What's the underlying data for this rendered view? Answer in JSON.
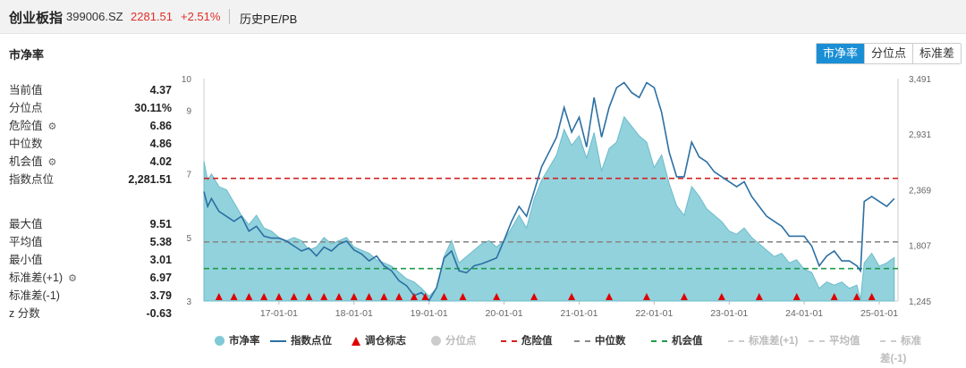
{
  "header": {
    "title": "创业板指",
    "code": "399006.SZ",
    "price": "2281.51",
    "change": "+2.51%",
    "history_link": "历史PE/PB"
  },
  "section_title": "市净率",
  "tabs": [
    {
      "label": "市净率",
      "active": true
    },
    {
      "label": "分位点",
      "active": false
    },
    {
      "label": "标准差",
      "active": false
    }
  ],
  "stats_top": [
    {
      "label": "当前值",
      "value": "4.37",
      "gear": false
    },
    {
      "label": "分位点",
      "value": "30.11%",
      "gear": false
    },
    {
      "label": "危险值",
      "value": "6.86",
      "gear": true
    },
    {
      "label": "中位数",
      "value": "4.86",
      "gear": false
    },
    {
      "label": "机会值",
      "value": "4.02",
      "gear": true
    },
    {
      "label": "指数点位",
      "value": "2,281.51",
      "gear": false
    }
  ],
  "stats_bottom": [
    {
      "label": "最大值",
      "value": "9.51",
      "gear": false
    },
    {
      "label": "平均值",
      "value": "5.38",
      "gear": false
    },
    {
      "label": "最小值",
      "value": "3.01",
      "gear": false
    },
    {
      "label": "标准差(+1)",
      "value": "6.97",
      "gear": true
    },
    {
      "label": "标准差(-1)",
      "value": "3.79",
      "gear": false
    },
    {
      "label": "z 分数",
      "value": "-0.63",
      "gear": false
    }
  ],
  "legend": [
    {
      "label": "市净率",
      "type": "dot",
      "color": "#7fcad6",
      "dim": false
    },
    {
      "label": "指数点位",
      "type": "line",
      "color": "#2b6fa3",
      "dim": false
    },
    {
      "label": "调仓标志",
      "type": "triangle",
      "color": "#e00000",
      "dim": false
    },
    {
      "label": "分位点",
      "type": "dot",
      "color": "#cccccc",
      "dim": true
    },
    {
      "label": "危险值",
      "type": "dash",
      "color": "#d32020",
      "dim": false
    },
    {
      "label": "中位数",
      "type": "dash",
      "color": "#8a8a8a",
      "dim": false
    },
    {
      "label": "机会值",
      "type": "dash",
      "color": "#1f9a4b",
      "dim": false
    },
    {
      "label": "标准差(+1)",
      "type": "dash",
      "color": "#cccccc",
      "dim": true
    },
    {
      "label": "平均值",
      "type": "dash",
      "color": "#cccccc",
      "dim": true
    },
    {
      "label": "标准差(-1)",
      "type": "dash",
      "color": "#cccccc",
      "dim": true
    }
  ],
  "chart_data": {
    "type": "area",
    "x_ticks": [
      "17-01-01",
      "18-01-01",
      "19-01-01",
      "20-01-01",
      "21-01-01",
      "22-01-01",
      "23-01-01",
      "24-01-01",
      "25-01-01"
    ],
    "x_range": [
      2016.0,
      2025.25
    ],
    "y_left_ticks": [
      "3",
      "5",
      "7",
      "9",
      "10"
    ],
    "y_left_range": [
      3,
      10
    ],
    "y_right_ticks": [
      "1,245",
      "1,807",
      "2,369",
      "2,931",
      "3,491"
    ],
    "y_right_range": [
      1245,
      3491
    ],
    "danger": 6.86,
    "median": 4.86,
    "opportunity": 4.02,
    "series": [
      {
        "name": "市净率",
        "axis": "left",
        "color": "#7fcad6",
        "x": [
          2016.0,
          2016.05,
          2016.1,
          2016.2,
          2016.3,
          2016.4,
          2016.5,
          2016.6,
          2016.7,
          2016.8,
          2016.9,
          2017.0,
          2017.1,
          2017.2,
          2017.3,
          2017.4,
          2017.5,
          2017.6,
          2017.7,
          2017.8,
          2017.9,
          2018.0,
          2018.1,
          2018.2,
          2018.3,
          2018.4,
          2018.5,
          2018.6,
          2018.7,
          2018.8,
          2018.9,
          2019.0,
          2019.1,
          2019.2,
          2019.3,
          2019.4,
          2019.5,
          2019.6,
          2019.7,
          2019.8,
          2019.9,
          2020.0,
          2020.1,
          2020.2,
          2020.3,
          2020.4,
          2020.5,
          2020.6,
          2020.7,
          2020.8,
          2020.9,
          2021.0,
          2021.1,
          2021.2,
          2021.3,
          2021.4,
          2021.5,
          2021.6,
          2021.7,
          2021.8,
          2021.9,
          2022.0,
          2022.1,
          2022.2,
          2022.3,
          2022.4,
          2022.5,
          2022.6,
          2022.7,
          2022.8,
          2022.9,
          2023.0,
          2023.1,
          2023.2,
          2023.3,
          2023.4,
          2023.5,
          2023.6,
          2023.7,
          2023.8,
          2023.9,
          2024.0,
          2024.1,
          2024.2,
          2024.3,
          2024.4,
          2024.5,
          2024.6,
          2024.7,
          2024.75,
          2024.8,
          2024.9,
          2025.0,
          2025.1,
          2025.2
        ],
        "values": [
          7.4,
          6.8,
          7.0,
          6.6,
          6.5,
          6.1,
          5.7,
          5.4,
          5.7,
          5.3,
          5.2,
          5.0,
          4.9,
          5.0,
          4.9,
          4.6,
          4.7,
          5.0,
          4.8,
          4.9,
          5.0,
          4.7,
          4.6,
          4.5,
          4.3,
          4.2,
          4.1,
          3.9,
          3.7,
          3.6,
          3.4,
          3.15,
          3.4,
          4.4,
          4.9,
          4.2,
          4.4,
          4.6,
          4.8,
          4.9,
          4.7,
          4.9,
          5.3,
          5.7,
          5.3,
          6.2,
          6.8,
          7.2,
          7.6,
          8.4,
          7.9,
          8.2,
          7.5,
          8.3,
          7.1,
          7.8,
          8.0,
          8.8,
          8.5,
          8.2,
          8.0,
          7.2,
          7.6,
          6.7,
          6.0,
          5.7,
          6.6,
          6.3,
          5.9,
          5.7,
          5.5,
          5.2,
          5.1,
          5.3,
          5.0,
          4.8,
          4.6,
          4.4,
          4.5,
          4.2,
          4.3,
          4.0,
          3.9,
          3.4,
          3.6,
          3.5,
          3.6,
          3.4,
          3.5,
          3.05,
          4.2,
          4.5,
          4.1,
          4.2,
          4.37
        ]
      },
      {
        "name": "指数点位",
        "axis": "right",
        "color": "#2b6fa3",
        "x": [
          2016.0,
          2016.05,
          2016.1,
          2016.2,
          2016.3,
          2016.4,
          2016.5,
          2016.6,
          2016.7,
          2016.8,
          2016.9,
          2017.0,
          2017.1,
          2017.2,
          2017.3,
          2017.4,
          2017.5,
          2017.6,
          2017.7,
          2017.8,
          2017.9,
          2018.0,
          2018.1,
          2018.2,
          2018.3,
          2018.4,
          2018.5,
          2018.6,
          2018.7,
          2018.8,
          2018.9,
          2019.0,
          2019.1,
          2019.2,
          2019.3,
          2019.4,
          2019.5,
          2019.6,
          2019.7,
          2019.8,
          2019.9,
          2020.0,
          2020.1,
          2020.2,
          2020.3,
          2020.4,
          2020.5,
          2020.6,
          2020.7,
          2020.8,
          2020.9,
          2021.0,
          2021.1,
          2021.2,
          2021.3,
          2021.4,
          2021.5,
          2021.6,
          2021.7,
          2021.8,
          2021.9,
          2022.0,
          2022.1,
          2022.2,
          2022.3,
          2022.4,
          2022.5,
          2022.6,
          2022.7,
          2022.8,
          2022.9,
          2023.0,
          2023.1,
          2023.2,
          2023.3,
          2023.4,
          2023.5,
          2023.6,
          2023.7,
          2023.8,
          2023.9,
          2024.0,
          2024.1,
          2024.2,
          2024.3,
          2024.4,
          2024.5,
          2024.6,
          2024.7,
          2024.75,
          2024.8,
          2024.9,
          2025.0,
          2025.1,
          2025.2
        ],
        "values": [
          2350,
          2200,
          2280,
          2150,
          2100,
          2050,
          2100,
          1950,
          2000,
          1900,
          1880,
          1880,
          1850,
          1800,
          1750,
          1780,
          1700,
          1790,
          1750,
          1820,
          1850,
          1760,
          1720,
          1650,
          1700,
          1600,
          1550,
          1450,
          1400,
          1300,
          1330,
          1250,
          1380,
          1680,
          1750,
          1550,
          1530,
          1600,
          1620,
          1650,
          1680,
          1860,
          2050,
          2200,
          2100,
          2350,
          2600,
          2750,
          2900,
          3200,
          2950,
          3100,
          2800,
          3300,
          2900,
          3200,
          3400,
          3450,
          3350,
          3300,
          3450,
          3400,
          3150,
          2750,
          2500,
          2500,
          2850,
          2700,
          2650,
          2550,
          2500,
          2450,
          2400,
          2450,
          2300,
          2200,
          2100,
          2050,
          2000,
          1900,
          1900,
          1900,
          1800,
          1600,
          1700,
          1750,
          1650,
          1650,
          1600,
          1550,
          2250,
          2300,
          2250,
          2200,
          2280
        ]
      }
    ],
    "rebalance_x": [
      2016.2,
      2016.4,
      2016.6,
      2016.8,
      2017.0,
      2017.2,
      2017.4,
      2017.6,
      2017.8,
      2018.0,
      2018.2,
      2018.4,
      2018.6,
      2018.8,
      2018.95,
      2019.2,
      2019.45,
      2019.9,
      2020.4,
      2020.9,
      2021.4,
      2021.9,
      2022.4,
      2022.9,
      2023.4,
      2023.9,
      2024.4,
      2024.7,
      2024.9
    ]
  }
}
